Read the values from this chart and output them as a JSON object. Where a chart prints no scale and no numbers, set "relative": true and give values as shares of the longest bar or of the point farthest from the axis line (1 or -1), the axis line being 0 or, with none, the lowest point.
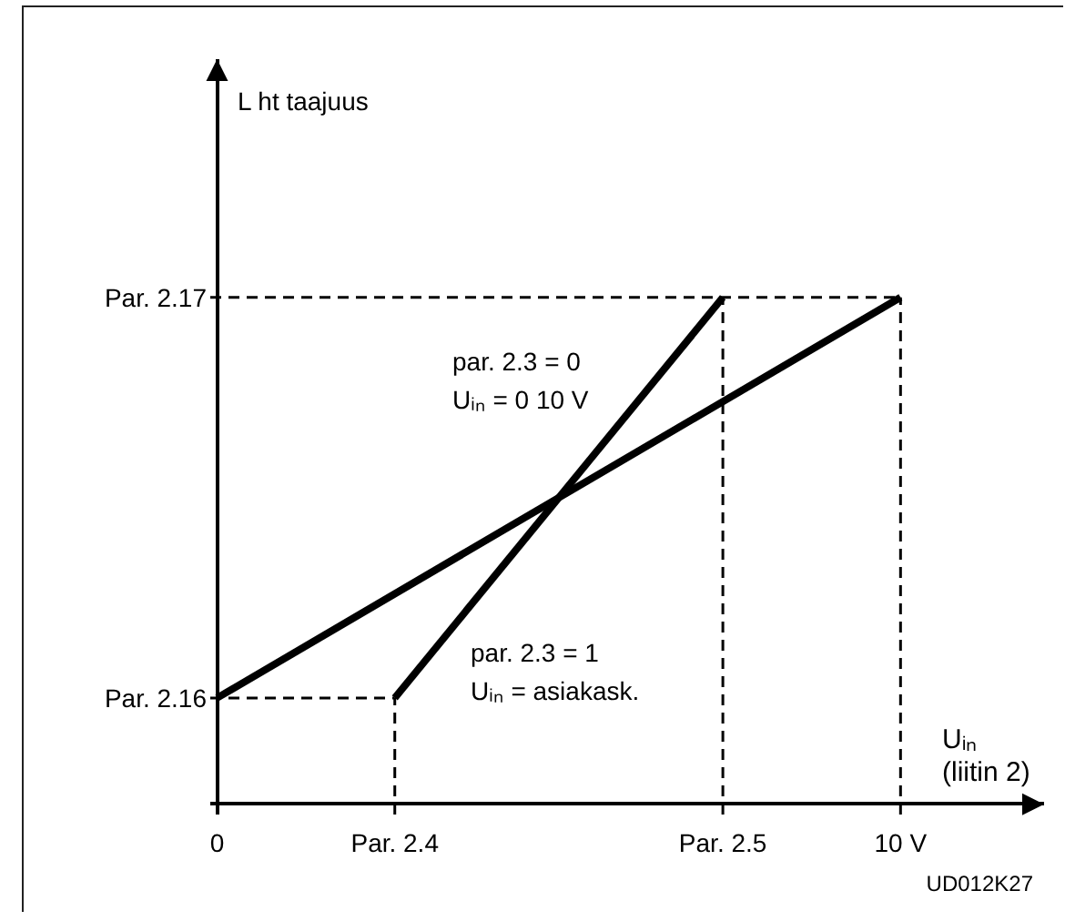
{
  "chart_data": {
    "type": "line",
    "relative": true,
    "xlabel": "Uᵢₙ\n(liitin 2)",
    "xlim": [
      -0.1,
      12.1
    ],
    "xticks": [
      0,
      {
        "value": 10,
        "label": "10 V"
      }
    ],
    "series": [
      {
        "color": "#000000",
        "x": [
          0,
          10
        ],
        "values": [
          0.21,
          1
        ]
      },
      {
        "color": "#000000",
        "x": [
          2.6,
          7.4
        ],
        "values": [
          0.21,
          1
        ]
      }
    ],
    "ref_lines": [
      {
        "axis": "y",
        "value": 1,
        "label": "Par. 2.17",
        "color": "#000000",
        "line_style": "dashed"
      },
      {
        "axis": "y",
        "value": 0.21,
        "label": "Par. 2.16",
        "color": "#000000",
        "line_style": "dashed"
      },
      {
        "axis": "x",
        "value": 2.6,
        "label": "Par. 2.4",
        "color": "#000000",
        "line_style": "dashed"
      },
      {
        "axis": "x",
        "value": 7.4,
        "label": "Par. 2.5",
        "color": "#000000",
        "line_style": "dashed"
      },
      {
        "axis": "x",
        "value": 10,
        "color": "#000000",
        "line_style": "dashed"
      }
    ],
    "annotations": [
      "L ht taajuus",
      "par. 2.3 = 0\nUᵢₙ = 0    10 V",
      "par. 2.3 = 1\nUᵢₙ = asiakask.",
      "UD012K27"
    ],
    "grid": false,
    "marker": "none",
    "line_style": "solid",
    "tick_labels": "x"
  }
}
